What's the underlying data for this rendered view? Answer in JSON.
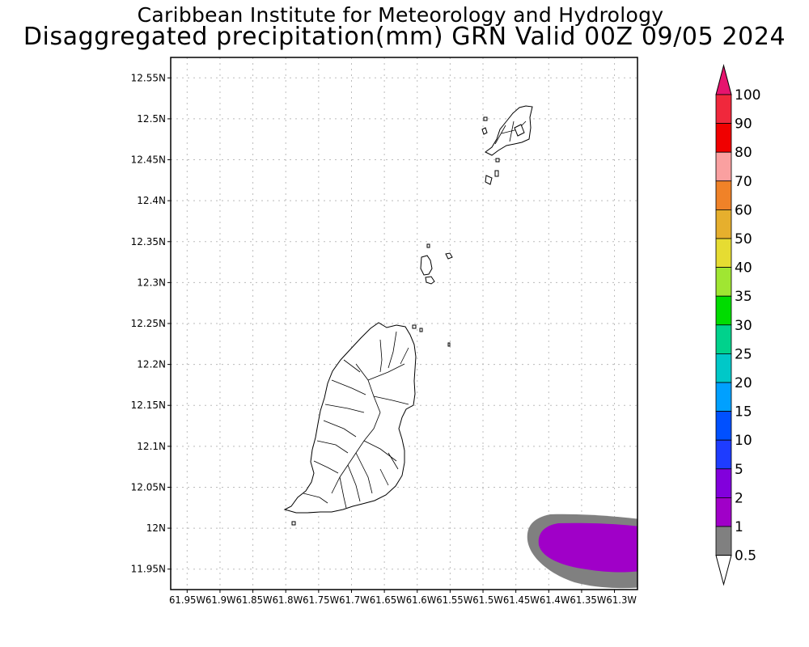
{
  "header": {
    "title": "Caribbean Institute for Meteorology and Hydrology",
    "subtitle": "Disaggregated precipitation(mm) GRN Valid 00Z 09/05 2024"
  },
  "map": {
    "lat_range": [
      11.925,
      12.575
    ],
    "lon_range": [
      -61.975,
      -61.265
    ],
    "lat_ticks": [
      "12.55N",
      "12.5N",
      "12.45N",
      "12.4N",
      "12.35N",
      "12.3N",
      "12.25N",
      "12.2N",
      "12.15N",
      "12.1N",
      "12.05N",
      "12N",
      "11.95N"
    ],
    "lat_values": [
      12.55,
      12.5,
      12.45,
      12.4,
      12.35,
      12.3,
      12.25,
      12.2,
      12.15,
      12.1,
      12.05,
      12.0,
      11.95
    ],
    "lon_ticks": [
      "61.95W",
      "61.9W",
      "61.85W",
      "61.8W",
      "61.75W",
      "61.7W",
      "61.65W",
      "61.6W",
      "61.55W",
      "61.5W",
      "61.45W",
      "61.4W",
      "61.35W",
      "61.3W"
    ],
    "lon_values": [
      -61.95,
      -61.9,
      -61.85,
      -61.8,
      -61.75,
      -61.7,
      -61.65,
      -61.6,
      -61.55,
      -61.5,
      -61.45,
      -61.4,
      -61.35,
      -61.3
    ],
    "grid": "dotted",
    "precip_area": {
      "location": "bottom-right corner",
      "outer_class": "0.5-1",
      "inner_class": "1-2"
    }
  },
  "colorbar": {
    "labels": [
      "0.5",
      "1",
      "2",
      "5",
      "10",
      "15",
      "20",
      "25",
      "30",
      "35",
      "40",
      "50",
      "60",
      "70",
      "80",
      "90",
      "100"
    ],
    "colors": [
      "#808080",
      "#a000c8",
      "#8200dc",
      "#1e3cff",
      "#0050ff",
      "#00a0ff",
      "#00c8c8",
      "#00d28c",
      "#00dc00",
      "#a0e632",
      "#e6dc32",
      "#e6af2d",
      "#f08228",
      "#faa0a0",
      "#f00000",
      "#f0283c",
      "#e6145a"
    ],
    "top_arrow_color": "#e6146e",
    "bottom_arrow_color": "#ffffff"
  }
}
